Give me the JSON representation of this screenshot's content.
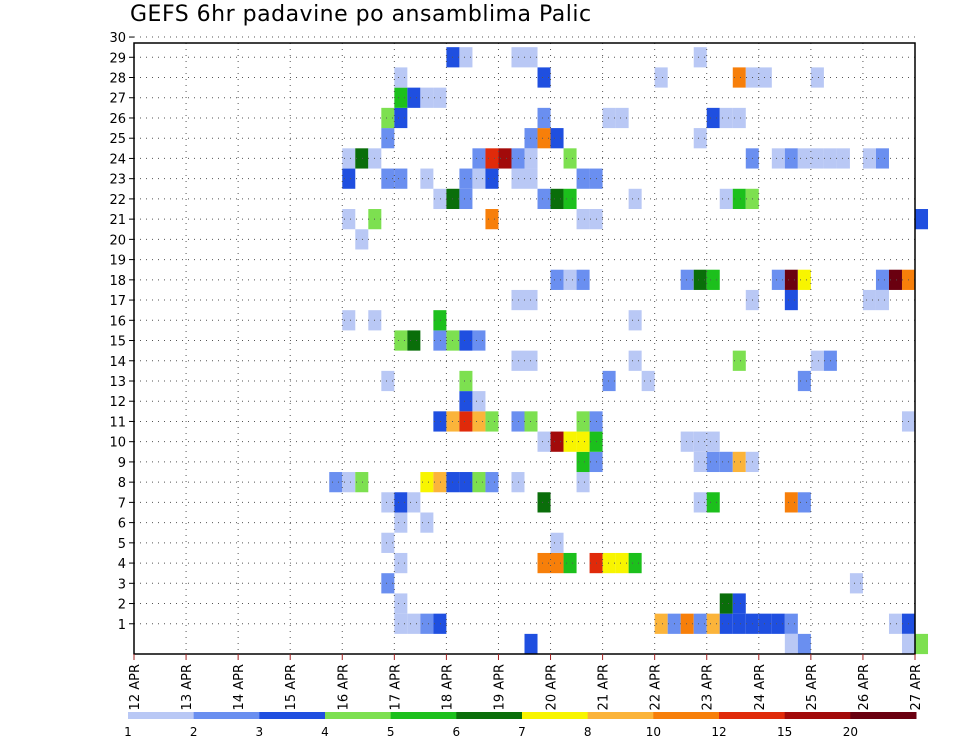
{
  "chart_data": {
    "type": "heatmap",
    "title": "GEFS 6hr padavine po ansamblima Palic",
    "xlabel": "",
    "ylabel": "",
    "x_axis": {
      "start_day": 12,
      "end_day": 27,
      "steps_per_day": 4,
      "tick_labels": [
        "12 APR",
        "13 APR",
        "14 APR",
        "15 APR",
        "16 APR",
        "17 APR",
        "18 APR",
        "19 APR",
        "20 APR",
        "21 APR",
        "22 APR",
        "23 APR",
        "24 APR",
        "25 APR",
        "26 APR",
        "27 APR"
      ]
    },
    "y_axis": {
      "min": 0,
      "max": 30,
      "tick_labels": [
        "1",
        "2",
        "3",
        "4",
        "5",
        "6",
        "7",
        "8",
        "9",
        "10",
        "11",
        "12",
        "13",
        "14",
        "15",
        "16",
        "17",
        "18",
        "19",
        "20",
        "21",
        "22",
        "23",
        "24",
        "25",
        "26",
        "27",
        "28",
        "29",
        "30"
      ]
    },
    "grid": true,
    "legend": {
      "placement": "bottom",
      "colors": [
        "#b9c8f5",
        "#6a8ff0",
        "#1f4fe0",
        "#7de050",
        "#1cc01c",
        "#0a6e0a",
        "#f8f500",
        "#fbb43a",
        "#f77f0a",
        "#e02a0a",
        "#a20a0a",
        "#6a0010"
      ],
      "labels": [
        "1",
        "2",
        "3",
        "4",
        "5",
        "6",
        "7",
        "8",
        "10",
        "12",
        "15",
        "20"
      ]
    },
    "cells": [
      [
        "17 APR 00Z",
        1,
        "1-2"
      ],
      [
        "17 APR 06Z",
        1,
        "1-2"
      ],
      [
        "17 APR 12Z",
        1,
        "2-3"
      ],
      [
        "17 APR 18Z",
        1,
        "3-4"
      ],
      [
        "22 APR 00Z",
        1,
        "8-10"
      ],
      [
        "22 APR 06Z",
        1,
        "2-3"
      ],
      [
        "22 APR 12Z",
        1,
        "10-12"
      ],
      [
        "22 APR 18Z",
        1,
        "2-3"
      ],
      [
        "23 APR 00Z",
        1,
        "8-10"
      ],
      [
        "23 APR 06Z",
        1,
        "3-4"
      ],
      [
        "23 APR 12Z",
        1,
        "3-4"
      ],
      [
        "23 APR 18Z",
        1,
        "3-4"
      ],
      [
        "24 APR 00Z",
        1,
        "3-4"
      ],
      [
        "24 APR 06Z",
        1,
        "3-4"
      ],
      [
        "24 APR 12Z",
        1,
        "2-3"
      ],
      [
        "26 APR 12Z",
        1,
        "1-2"
      ],
      [
        "26 APR 18Z",
        1,
        "3-4"
      ],
      [
        "17 APR 00Z",
        2,
        "1-2"
      ],
      [
        "23 APR 06Z",
        2,
        "6-7"
      ],
      [
        "23 APR 12Z",
        2,
        "3-4"
      ],
      [
        "16 APR 18Z",
        3,
        "2-3"
      ],
      [
        "25 APR 18Z",
        3,
        "1-2"
      ],
      [
        "17 APR 00Z",
        4,
        "1-2"
      ],
      [
        "19 APR 18Z",
        4,
        "10-12"
      ],
      [
        "20 APR 00Z",
        4,
        "10-12"
      ],
      [
        "20 APR 06Z",
        4,
        "5-6"
      ],
      [
        "20 APR 18Z",
        4,
        "12-15"
      ],
      [
        "21 APR 00Z",
        4,
        "7-8"
      ],
      [
        "21 APR 06Z",
        4,
        "7-8"
      ],
      [
        "21 APR 12Z",
        4,
        "5-6"
      ],
      [
        "16 APR 18Z",
        5,
        "1-2"
      ],
      [
        "20 APR 00Z",
        5,
        "1-2"
      ],
      [
        "17 APR 00Z",
        6,
        "1-2"
      ],
      [
        "17 APR 12Z",
        6,
        "1-2"
      ],
      [
        "16 APR 18Z",
        7,
        "1-2"
      ],
      [
        "17 APR 00Z",
        7,
        "3-4"
      ],
      [
        "17 APR 06Z",
        7,
        "1-2"
      ],
      [
        "19 APR 18Z",
        7,
        "6-7"
      ],
      [
        "22 APR 18Z",
        7,
        "1-2"
      ],
      [
        "23 APR 00Z",
        7,
        "5-6"
      ],
      [
        "24 APR 12Z",
        7,
        "10-12"
      ],
      [
        "24 APR 18Z",
        7,
        "2-3"
      ],
      [
        "15 APR 18Z",
        8,
        "2-3"
      ],
      [
        "16 APR 00Z",
        8,
        "1-2"
      ],
      [
        "16 APR 06Z",
        8,
        "4-5"
      ],
      [
        "17 APR 12Z",
        8,
        "7-8"
      ],
      [
        "17 APR 18Z",
        8,
        "8-10"
      ],
      [
        "18 APR 00Z",
        8,
        "3-4"
      ],
      [
        "18 APR 06Z",
        8,
        "3-4"
      ],
      [
        "18 APR 12Z",
        8,
        "4-5"
      ],
      [
        "18 APR 18Z",
        8,
        "2-3"
      ],
      [
        "19 APR 06Z",
        8,
        "1-2"
      ],
      [
        "20 APR 12Z",
        8,
        "1-2"
      ],
      [
        "20 APR 12Z",
        9,
        "5-6"
      ],
      [
        "20 APR 18Z",
        9,
        "2-3"
      ],
      [
        "22 APR 18Z",
        9,
        "1-2"
      ],
      [
        "23 APR 00Z",
        9,
        "2-3"
      ],
      [
        "23 APR 06Z",
        9,
        "2-3"
      ],
      [
        "23 APR 12Z",
        9,
        "8-10"
      ],
      [
        "23 APR 18Z",
        9,
        "1-2"
      ],
      [
        "19 APR 18Z",
        10,
        "1-2"
      ],
      [
        "20 APR 00Z",
        10,
        "15-20"
      ],
      [
        "20 APR 06Z",
        10,
        "7-8"
      ],
      [
        "20 APR 12Z",
        10,
        "7-8"
      ],
      [
        "20 APR 18Z",
        10,
        "5-6"
      ],
      [
        "22 APR 12Z",
        10,
        "1-2"
      ],
      [
        "22 APR 18Z",
        10,
        "1-2"
      ],
      [
        "23 APR 00Z",
        10,
        "1-2"
      ],
      [
        "17 APR 18Z",
        11,
        "3-4"
      ],
      [
        "18 APR 00Z",
        11,
        "8-10"
      ],
      [
        "18 APR 06Z",
        11,
        "12-15"
      ],
      [
        "18 APR 12Z",
        11,
        "8-10"
      ],
      [
        "18 APR 18Z",
        11,
        "4-5"
      ],
      [
        "19 APR 06Z",
        11,
        "2-3"
      ],
      [
        "19 APR 12Z",
        11,
        "4-5"
      ],
      [
        "20 APR 12Z",
        11,
        "4-5"
      ],
      [
        "20 APR 18Z",
        11,
        "2-3"
      ],
      [
        "26 APR 18Z",
        11,
        "1-2"
      ],
      [
        "18 APR 06Z",
        12,
        "3-4"
      ],
      [
        "18 APR 12Z",
        12,
        "1-2"
      ],
      [
        "18 APR 06Z",
        13,
        "4-5"
      ],
      [
        "16 APR 18Z",
        13,
        "1-2"
      ],
      [
        "21 APR 00Z",
        13,
        "2-3"
      ],
      [
        "21 APR 18Z",
        13,
        "1-2"
      ],
      [
        "24 APR 18Z",
        13,
        "2-3"
      ],
      [
        "19 APR 06Z",
        14,
        "1-2"
      ],
      [
        "19 APR 12Z",
        14,
        "1-2"
      ],
      [
        "21 APR 12Z",
        14,
        "1-2"
      ],
      [
        "23 APR 12Z",
        14,
        "4-5"
      ],
      [
        "25 APR 00Z",
        14,
        "1-2"
      ],
      [
        "25 APR 06Z",
        14,
        "2-3"
      ],
      [
        "17 APR 00Z",
        15,
        "4-5"
      ],
      [
        "17 APR 06Z",
        15,
        "6-7"
      ],
      [
        "17 APR 18Z",
        15,
        "2-3"
      ],
      [
        "18 APR 00Z",
        15,
        "4-5"
      ],
      [
        "18 APR 06Z",
        15,
        "3-4"
      ],
      [
        "18 APR 12Z",
        15,
        "2-3"
      ],
      [
        "16 APR 00Z",
        16,
        "1-2"
      ],
      [
        "16 APR 12Z",
        16,
        "1-2"
      ],
      [
        "17 APR 18Z",
        16,
        "5-6"
      ],
      [
        "21 APR 12Z",
        16,
        "1-2"
      ],
      [
        "19 APR 06Z",
        17,
        "1-2"
      ],
      [
        "19 APR 12Z",
        17,
        "1-2"
      ],
      [
        "23 APR 18Z",
        17,
        "1-2"
      ],
      [
        "24 APR 12Z",
        17,
        "3-4"
      ],
      [
        "26 APR 00Z",
        17,
        "1-2"
      ],
      [
        "26 APR 06Z",
        17,
        "1-2"
      ],
      [
        "20 APR 00Z",
        18,
        "2-3"
      ],
      [
        "20 APR 06Z",
        18,
        "1-2"
      ],
      [
        "20 APR 12Z",
        18,
        "2-3"
      ],
      [
        "22 APR 12Z",
        18,
        "2-3"
      ],
      [
        "22 APR 18Z",
        18,
        "6-7"
      ],
      [
        "23 APR 00Z",
        18,
        "5-6"
      ],
      [
        "24 APR 06Z",
        18,
        "2-3"
      ],
      [
        "24 APR 12Z",
        18,
        "20+"
      ],
      [
        "24 APR 18Z",
        18,
        "7-8"
      ],
      [
        "26 APR 06Z",
        18,
        "2-3"
      ],
      [
        "26 APR 12Z",
        18,
        "20+"
      ],
      [
        "26 APR 18Z",
        18,
        "10-12"
      ],
      [
        "16 APR 06Z",
        20,
        "1-2"
      ],
      [
        "16 APR 00Z",
        21,
        "1-2"
      ],
      [
        "16 APR 12Z",
        21,
        "4-5"
      ],
      [
        "18 APR 18Z",
        21,
        "10-12"
      ],
      [
        "20 APR 12Z",
        21,
        "1-2"
      ],
      [
        "20 APR 18Z",
        21,
        "1-2"
      ],
      [
        "27 APR 00Z",
        21,
        "3-4"
      ],
      [
        "17 APR 18Z",
        22,
        "1-2"
      ],
      [
        "18 APR 00Z",
        22,
        "6-7"
      ],
      [
        "18 APR 06Z",
        22,
        "2-3"
      ],
      [
        "19 APR 18Z",
        22,
        "2-3"
      ],
      [
        "20 APR 00Z",
        22,
        "6-7"
      ],
      [
        "20 APR 06Z",
        22,
        "5-6"
      ],
      [
        "21 APR 12Z",
        22,
        "1-2"
      ],
      [
        "23 APR 06Z",
        22,
        "1-2"
      ],
      [
        "23 APR 12Z",
        22,
        "5-6"
      ],
      [
        "23 APR 18Z",
        22,
        "4-5"
      ],
      [
        "16 APR 00Z",
        23,
        "3-4"
      ],
      [
        "16 APR 18Z",
        23,
        "2-3"
      ],
      [
        "17 APR 00Z",
        23,
        "2-3"
      ],
      [
        "17 APR 12Z",
        23,
        "1-2"
      ],
      [
        "18 APR 06Z",
        23,
        "2-3"
      ],
      [
        "18 APR 12Z",
        23,
        "1-2"
      ],
      [
        "18 APR 18Z",
        23,
        "3-4"
      ],
      [
        "19 APR 06Z",
        23,
        "1-2"
      ],
      [
        "19 APR 12Z",
        23,
        "1-2"
      ],
      [
        "20 APR 12Z",
        23,
        "2-3"
      ],
      [
        "20 APR 18Z",
        23,
        "2-3"
      ],
      [
        "16 APR 00Z",
        24,
        "1-2"
      ],
      [
        "16 APR 06Z",
        24,
        "6-7"
      ],
      [
        "16 APR 12Z",
        24,
        "1-2"
      ],
      [
        "18 APR 12Z",
        24,
        "2-3"
      ],
      [
        "18 APR 18Z",
        24,
        "12-15"
      ],
      [
        "19 APR 00Z",
        24,
        "15-20"
      ],
      [
        "19 APR 06Z",
        24,
        "2-3"
      ],
      [
        "19 APR 12Z",
        24,
        "1-2"
      ],
      [
        "20 APR 06Z",
        24,
        "4-5"
      ],
      [
        "23 APR 18Z",
        24,
        "2-3"
      ],
      [
        "24 APR 06Z",
        24,
        "1-2"
      ],
      [
        "24 APR 12Z",
        24,
        "2-3"
      ],
      [
        "24 APR 18Z",
        24,
        "1-2"
      ],
      [
        "25 APR 00Z",
        24,
        "1-2"
      ],
      [
        "25 APR 06Z",
        24,
        "1-2"
      ],
      [
        "25 APR 12Z",
        24,
        "1-2"
      ],
      [
        "26 APR 00Z",
        24,
        "1-2"
      ],
      [
        "26 APR 06Z",
        24,
        "2-3"
      ],
      [
        "16 APR 18Z",
        25,
        "2-3"
      ],
      [
        "19 APR 12Z",
        25,
        "2-3"
      ],
      [
        "19 APR 18Z",
        25,
        "10-12"
      ],
      [
        "20 APR 00Z",
        25,
        "3-4"
      ],
      [
        "22 APR 18Z",
        25,
        "1-2"
      ],
      [
        "16 APR 18Z",
        26,
        "4-5"
      ],
      [
        "17 APR 00Z",
        26,
        "3-4"
      ],
      [
        "19 APR 18Z",
        26,
        "2-3"
      ],
      [
        "21 APR 00Z",
        26,
        "1-2"
      ],
      [
        "21 APR 06Z",
        26,
        "1-2"
      ],
      [
        "23 APR 00Z",
        26,
        "3-4"
      ],
      [
        "23 APR 06Z",
        26,
        "1-2"
      ],
      [
        "23 APR 12Z",
        26,
        "1-2"
      ],
      [
        "17 APR 00Z",
        27,
        "5-6"
      ],
      [
        "17 APR 06Z",
        27,
        "3-4"
      ],
      [
        "17 APR 12Z",
        27,
        "1-2"
      ],
      [
        "17 APR 18Z",
        27,
        "1-2"
      ],
      [
        "17 APR 00Z",
        28,
        "1-2"
      ],
      [
        "19 APR 18Z",
        28,
        "3-4"
      ],
      [
        "22 APR 00Z",
        28,
        "1-2"
      ],
      [
        "23 APR 12Z",
        28,
        "10-12"
      ],
      [
        "23 APR 18Z",
        28,
        "1-2"
      ],
      [
        "24 APR 00Z",
        28,
        "1-2"
      ],
      [
        "25 APR 00Z",
        28,
        "1-2"
      ],
      [
        "18 APR 00Z",
        29,
        "3-4"
      ],
      [
        "18 APR 06Z",
        29,
        "1-2"
      ],
      [
        "19 APR 06Z",
        29,
        "1-2"
      ],
      [
        "19 APR 12Z",
        29,
        "1-2"
      ],
      [
        "22 APR 18Z",
        29,
        "1-2"
      ],
      [
        "19 APR 12Z",
        0,
        "3-4"
      ],
      [
        "24 APR 12Z",
        0,
        "1-2"
      ],
      [
        "24 APR 18Z",
        0,
        "2-3"
      ],
      [
        "26 APR 18Z",
        0,
        "1-2"
      ],
      [
        "27 APR 00Z",
        0,
        "4-5"
      ]
    ]
  }
}
